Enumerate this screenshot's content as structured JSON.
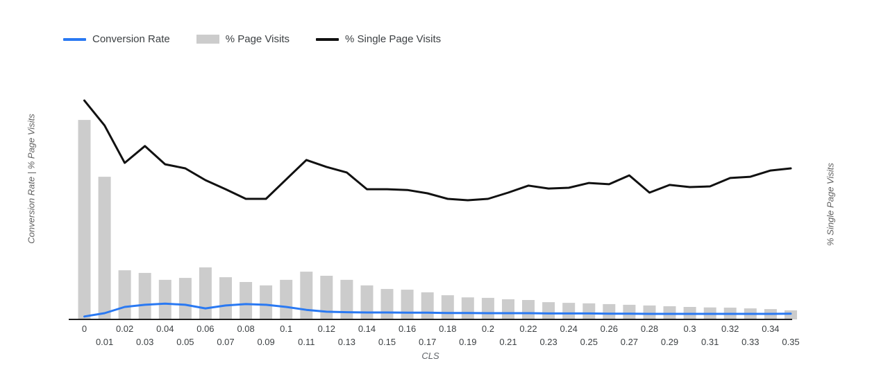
{
  "legend": {
    "items": [
      {
        "label": "Conversion Rate",
        "swatch": "line"
      },
      {
        "label": "% Page Visits",
        "swatch": "rect"
      },
      {
        "label": "% Single Page Visits",
        "swatch": "line"
      }
    ]
  },
  "chart_data": {
    "type": "combo-bar-line",
    "title": "",
    "xlabel": "CLS",
    "ylabel_left": "Conversion Rate | % Page Visits",
    "ylabel_right": "% Single Page Visits",
    "ylim": [
      0,
      100
    ],
    "y_ticks_shown": false,
    "grid": false,
    "legend_position": "top-left",
    "x_tick_rows": 2,
    "units_note": "no numeric y-axis ticks are displayed; values estimated as percent of plot height",
    "categories": [
      "0",
      "0.01",
      "0.02",
      "0.03",
      "0.04",
      "0.05",
      "0.06",
      "0.07",
      "0.08",
      "0.09",
      "0.1",
      "0.11",
      "0.12",
      "0.13",
      "0.14",
      "0.15",
      "0.16",
      "0.17",
      "0.18",
      "0.19",
      "0.2",
      "0.21",
      "0.22",
      "0.23",
      "0.24",
      "0.25",
      "0.26",
      "0.27",
      "0.28",
      "0.29",
      "0.3",
      "0.31",
      "0.32",
      "0.33",
      "0.34",
      "0.35"
    ],
    "series": [
      {
        "name": "Conversion Rate",
        "type": "line",
        "axis": "left",
        "color": "#2a79f2",
        "values": [
          1.2,
          2.6,
          5.2,
          6.1,
          6.6,
          6.1,
          4.6,
          5.8,
          6.4,
          6.1,
          5.2,
          4.0,
          3.2,
          3.0,
          2.9,
          2.9,
          2.8,
          2.8,
          2.7,
          2.7,
          2.6,
          2.6,
          2.6,
          2.5,
          2.5,
          2.5,
          2.4,
          2.4,
          2.3,
          2.3,
          2.3,
          2.3,
          2.3,
          2.3,
          2.3,
          2.4
        ]
      },
      {
        "name": "% Page Visits",
        "type": "bar",
        "axis": "left",
        "color": "#cccccc",
        "values": [
          83.2,
          59.5,
          20.5,
          19.4,
          16.5,
          17.3,
          21.7,
          17.6,
          15.6,
          14.2,
          16.5,
          19.9,
          18.2,
          16.5,
          14.2,
          12.7,
          12.4,
          11.3,
          10.1,
          9.2,
          9.0,
          8.4,
          8.1,
          7.2,
          6.9,
          6.7,
          6.4,
          6.1,
          5.8,
          5.5,
          5.2,
          5.0,
          4.9,
          4.6,
          4.3,
          3.8
        ]
      },
      {
        "name": "% Single Page Visits",
        "type": "line",
        "axis": "right",
        "color": "#111111",
        "values": [
          91.3,
          80.9,
          65.3,
          72.3,
          64.7,
          63.0,
          58.1,
          54.3,
          50.3,
          50.3,
          58.4,
          66.5,
          63.6,
          61.3,
          54.3,
          54.3,
          54.0,
          52.6,
          50.3,
          49.7,
          50.3,
          52.9,
          55.8,
          54.6,
          54.9,
          56.9,
          56.4,
          60.1,
          52.9,
          56.1,
          55.2,
          55.5,
          59.0,
          59.5,
          62.1,
          63.0
        ]
      }
    ],
    "axis_color": "#1f1f1f",
    "tick_color": "#3c4043"
  }
}
